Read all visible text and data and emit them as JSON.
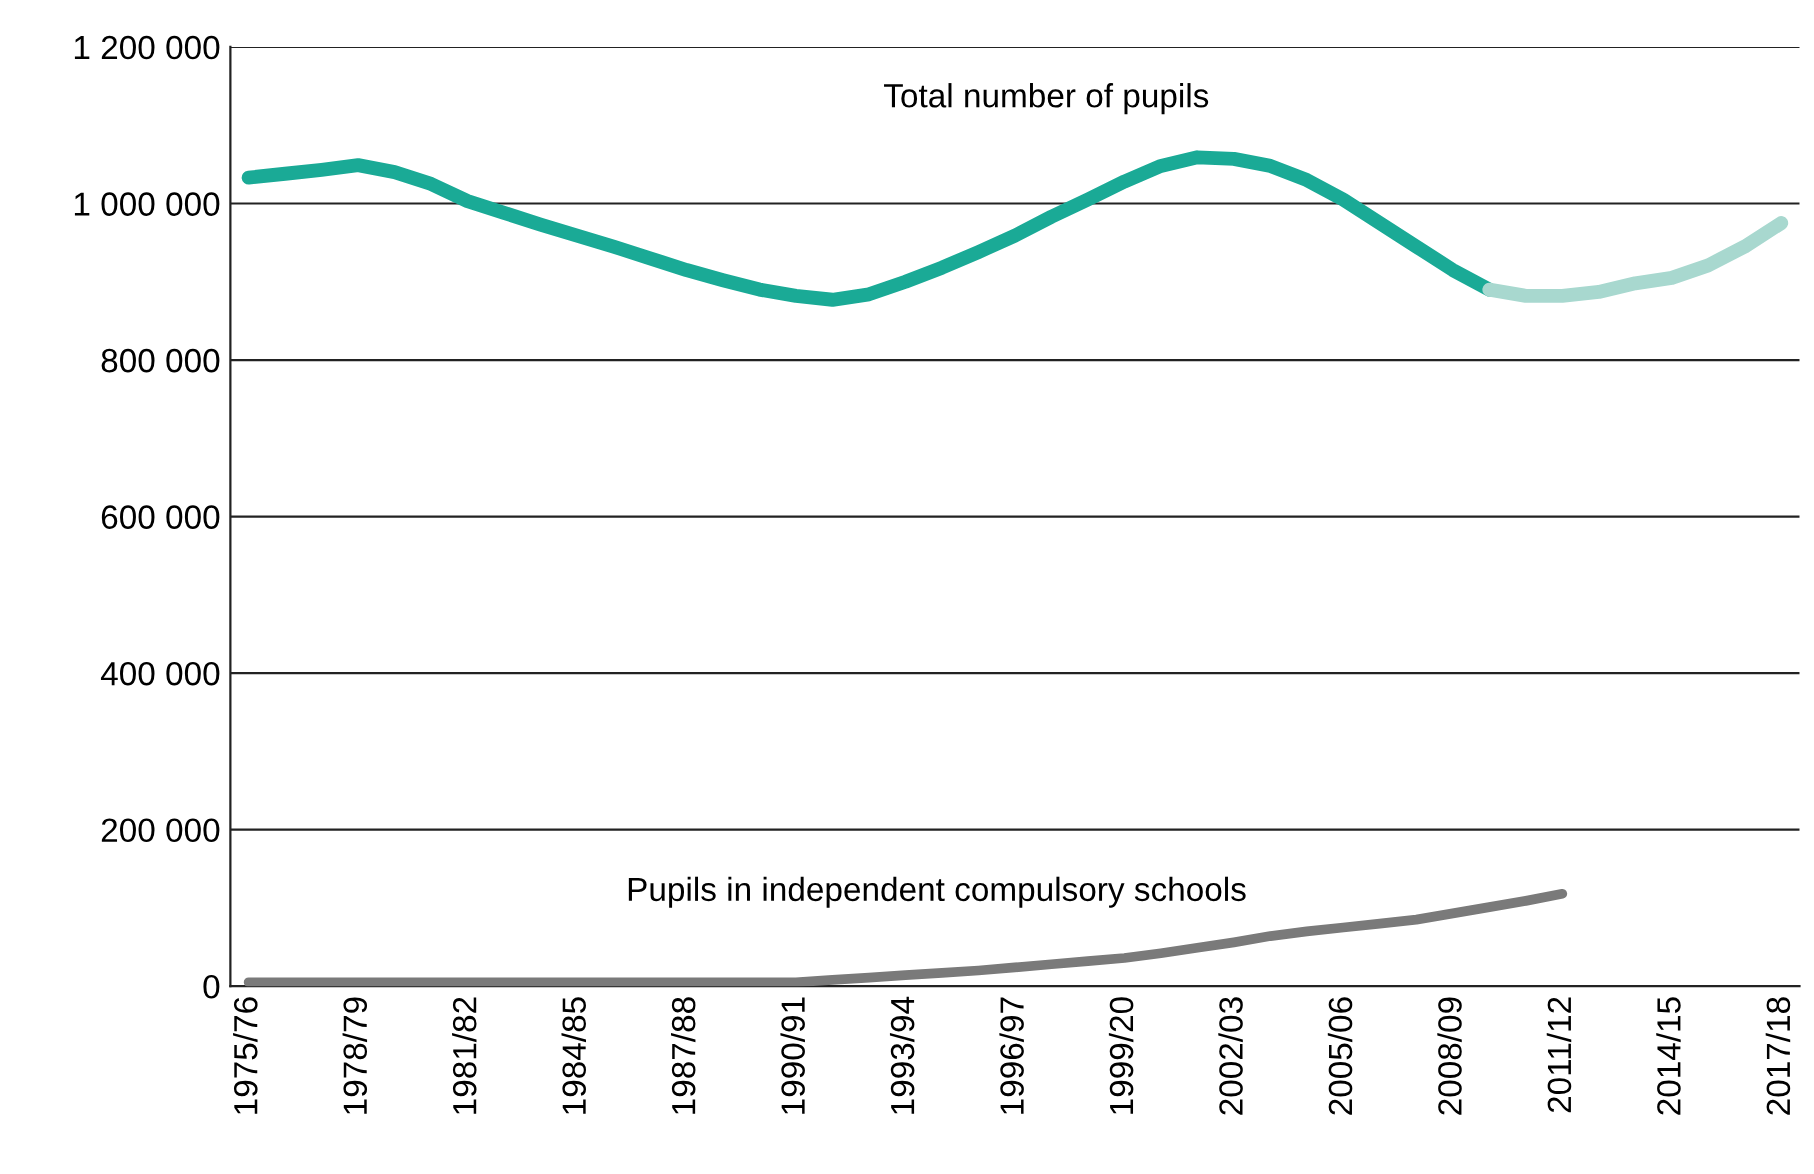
{
  "chart_data": {
    "type": "line",
    "categories": [
      "1975/76",
      null,
      null,
      "1978/79",
      null,
      null,
      "1981/82",
      null,
      null,
      "1984/85",
      null,
      null,
      "1987/88",
      null,
      null,
      "1990/91",
      null,
      null,
      "1993/94",
      null,
      null,
      "1996/97",
      null,
      null,
      "1999/20",
      null,
      null,
      "2002/03",
      null,
      null,
      "2005/06",
      null,
      null,
      "2008/09",
      null,
      null,
      "2011/12",
      null,
      null,
      "2014/15",
      null,
      null,
      "2017/18"
    ],
    "series": [
      {
        "name": "Total number of pupils",
        "color": "#1aaa96",
        "values": [
          1033000,
          1038000,
          1043000,
          1049000,
          1040000,
          1025000,
          1003000,
          988000,
          973000,
          959000,
          945000,
          930000,
          915000,
          902000,
          890000,
          882000,
          877000,
          884000,
          900000,
          918000,
          938000,
          959000,
          983000,
          1005000,
          1028000,
          1048000,
          1059000,
          1057000,
          1048000,
          1030000,
          1005000,
          975000,
          945000,
          915000,
          890000,
          null,
          null,
          null,
          null,
          null,
          null,
          null,
          null
        ]
      },
      {
        "color": "#a8d8cf",
        "values": [
          null,
          null,
          null,
          null,
          null,
          null,
          null,
          null,
          null,
          null,
          null,
          null,
          null,
          null,
          null,
          null,
          null,
          null,
          null,
          null,
          null,
          null,
          null,
          null,
          null,
          null,
          null,
          null,
          null,
          null,
          null,
          null,
          null,
          null,
          890000,
          882000,
          882000,
          887000,
          898000,
          905000,
          921000,
          945000,
          975000
        ]
      },
      {
        "name": "Pupils in independent compulsory schools",
        "color": "#7a7a7a",
        "values": [
          5000,
          5000,
          5000,
          5000,
          5000,
          5000,
          5000,
          5000,
          5000,
          5000,
          5000,
          5000,
          5000,
          5000,
          5000,
          5000,
          8000,
          11000,
          14000,
          17000,
          20000,
          24000,
          28000,
          32000,
          36000,
          42000,
          49000,
          56000,
          64000,
          70000,
          75000,
          80000,
          85000,
          93000,
          101000,
          109000,
          118000,
          null,
          null,
          null,
          null,
          null,
          null
        ]
      }
    ],
    "ylim": [
      0,
      1200000
    ],
    "yticks": [
      0,
      {
        "value": 200000,
        "label": "200 000"
      },
      {
        "value": 400000,
        "label": "400 000"
      },
      {
        "value": 600000,
        "label": "600 000"
      },
      {
        "value": 800000,
        "label": "800 000"
      },
      {
        "value": 1000000,
        "label": "1 000 000"
      },
      {
        "value": 1200000,
        "label": "1 200 000"
      }
    ],
    "grid": "y",
    "legend": false,
    "marker": "none",
    "line_style": "solid"
  }
}
